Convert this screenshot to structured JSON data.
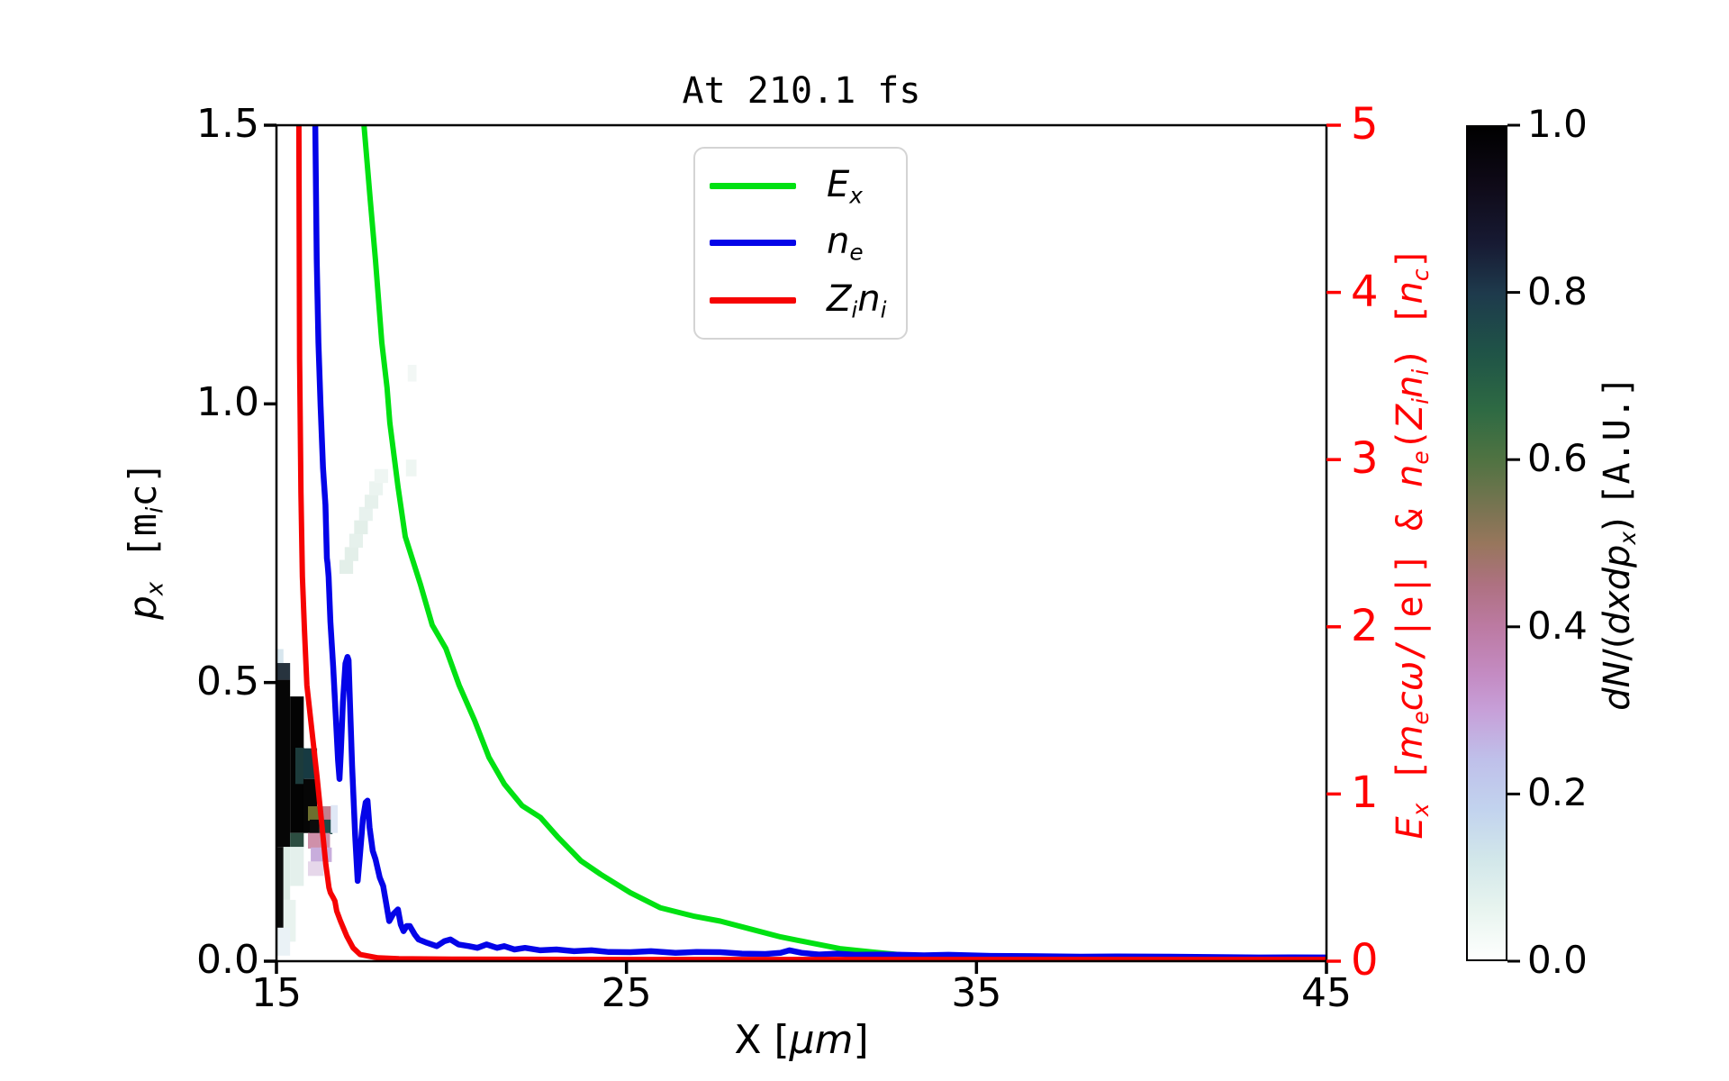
{
  "chart_data": {
    "type": "line+heatmap",
    "title": "At 210.1 fs",
    "axes": {
      "x": {
        "min": 15,
        "max": 45,
        "ticks": [
          "15",
          "25",
          "35",
          "45"
        ],
        "label_segments": [
          {
            "t": "X "
          },
          {
            "t": "["
          },
          {
            "t": "μm",
            "it": true
          },
          {
            "t": "]"
          }
        ]
      },
      "y_left": {
        "min": 0.0,
        "max": 1.5,
        "ticks": [
          "0.0",
          "0.5",
          "1.0",
          "1.5"
        ],
        "label_segments": [
          {
            "t": "p",
            "it": true
          },
          {
            "t": "x",
            "it": true,
            "sub": true
          },
          {
            "t": " ",
            "mono": true
          },
          {
            "t": "[m",
            "mono": true
          },
          {
            "t": "i",
            "it": true,
            "sub": true
          },
          {
            "t": "c]",
            "mono": true
          }
        ]
      },
      "y_right": {
        "min": 0,
        "max": 5,
        "ticks": [
          "0",
          "1",
          "2",
          "3",
          "4",
          "5"
        ],
        "color": "#ff0000",
        "label_segments": [
          {
            "t": "E",
            "it": true
          },
          {
            "t": "x",
            "it": true,
            "sub": true
          },
          {
            "t": " [",
            "mono": true
          },
          {
            "t": "m",
            "it": true
          },
          {
            "t": "e",
            "it": true,
            "sub": true
          },
          {
            "t": "c",
            "it": true
          },
          {
            "t": "ω",
            "it": true
          },
          {
            "t": "/|e|]",
            "mono": true
          },
          {
            "t": " & ",
            "mono": true
          },
          {
            "t": "n",
            "it": true
          },
          {
            "t": "e",
            "it": true,
            "sub": true
          },
          {
            "t": "(",
            "mono": true
          },
          {
            "t": "Z",
            "it": true
          },
          {
            "t": "i",
            "it": true,
            "sub": true
          },
          {
            "t": "n",
            "it": true
          },
          {
            "t": "i",
            "it": true,
            "sub": true
          },
          {
            "t": ")",
            "mono": true
          },
          {
            "t": " [",
            "mono": true
          },
          {
            "t": "n",
            "it": true
          },
          {
            "t": "c",
            "it": true,
            "sub": true
          },
          {
            "t": "]",
            "mono": true
          }
        ]
      }
    },
    "colorbar": {
      "min": 0.0,
      "max": 1.0,
      "ticks": [
        "0.0",
        "0.2",
        "0.4",
        "0.6",
        "0.8",
        "1.0"
      ],
      "label_segments": [
        {
          "t": "dN",
          "it": true
        },
        {
          "t": "/("
        },
        {
          "t": "dxdp",
          "it": true
        },
        {
          "t": "x",
          "it": true,
          "sub": true
        },
        {
          "t": ") "
        },
        {
          "t": "[A.U.]",
          "mono": true
        }
      ],
      "stops": [
        [
          0,
          "#000000"
        ],
        [
          7,
          "#0f0a18"
        ],
        [
          14,
          "#171a33"
        ],
        [
          20,
          "#1e3a4c"
        ],
        [
          27,
          "#1f5347"
        ],
        [
          34,
          "#2e6a43"
        ],
        [
          40,
          "#507342"
        ],
        [
          46,
          "#7a7452"
        ],
        [
          50,
          "#97765c"
        ],
        [
          55,
          "#ae7181"
        ],
        [
          60,
          "#bc7aa2"
        ],
        [
          66,
          "#c48cc4"
        ],
        [
          70,
          "#c79fd8"
        ],
        [
          76,
          "#bfc0ea"
        ],
        [
          82,
          "#c2d3ee"
        ],
        [
          88,
          "#d2e7ea"
        ],
        [
          94,
          "#e8f4ef"
        ],
        [
          100,
          "#fefffe"
        ]
      ]
    },
    "legend": {
      "entries": [
        {
          "name": "Ex",
          "color": "#00e112",
          "segments": [
            {
              "t": "E",
              "it": true
            },
            {
              "t": "x",
              "it": true,
              "sub": true
            }
          ]
        },
        {
          "name": "ne",
          "color": "#0404e8",
          "segments": [
            {
              "t": "n",
              "it": true
            },
            {
              "t": "e",
              "it": true,
              "sub": true
            }
          ]
        },
        {
          "name": "Zini",
          "color": "#f60303",
          "segments": [
            {
              "t": "Z",
              "it": true
            },
            {
              "t": "i",
              "it": true,
              "sub": true
            },
            {
              "t": "n",
              "it": true
            },
            {
              "t": "i",
              "it": true,
              "sub": true
            }
          ]
        }
      ]
    },
    "series": [
      {
        "name": "Ex",
        "color": "#00e112",
        "width": 6,
        "points": [
          [
            17.5,
            5.0
          ],
          [
            17.68,
            4.55
          ],
          [
            17.83,
            4.19
          ],
          [
            18.01,
            3.7
          ],
          [
            18.16,
            3.43
          ],
          [
            18.24,
            3.22
          ],
          [
            18.47,
            2.84
          ],
          [
            18.68,
            2.54
          ],
          [
            19.12,
            2.25
          ],
          [
            19.45,
            2.01
          ],
          [
            19.84,
            1.87
          ],
          [
            20.22,
            1.65
          ],
          [
            20.66,
            1.44
          ],
          [
            21.07,
            1.22
          ],
          [
            21.51,
            1.06
          ],
          [
            22.02,
            0.93
          ],
          [
            22.54,
            0.86
          ],
          [
            23.05,
            0.74
          ],
          [
            23.7,
            0.6
          ],
          [
            24.26,
            0.52
          ],
          [
            25.11,
            0.41
          ],
          [
            25.96,
            0.32
          ],
          [
            26.91,
            0.27
          ],
          [
            27.68,
            0.24
          ],
          [
            28.58,
            0.19
          ],
          [
            29.41,
            0.145
          ],
          [
            30.25,
            0.11
          ],
          [
            31.1,
            0.075
          ],
          [
            32.06,
            0.054
          ],
          [
            32.83,
            0.038
          ],
          [
            34.11,
            0.027
          ],
          [
            35.4,
            0.022
          ],
          [
            37.97,
            0.016
          ],
          [
            40.54,
            0.011
          ],
          [
            45.0,
            0.01
          ]
        ]
      },
      {
        "name": "ne",
        "color": "#0404e8",
        "width": 6.5,
        "points": [
          [
            16.11,
            5.0
          ],
          [
            16.15,
            4.2
          ],
          [
            16.2,
            3.7
          ],
          [
            16.26,
            3.32
          ],
          [
            16.33,
            2.95
          ],
          [
            16.4,
            2.73
          ],
          [
            16.44,
            2.41
          ],
          [
            16.46,
            2.38
          ],
          [
            16.49,
            2.3
          ],
          [
            16.54,
            2.03
          ],
          [
            16.62,
            1.76
          ],
          [
            16.7,
            1.44
          ],
          [
            16.76,
            1.2
          ],
          [
            16.8,
            1.09
          ],
          [
            16.84,
            1.25
          ],
          [
            16.9,
            1.55
          ],
          [
            16.97,
            1.78
          ],
          [
            17.03,
            1.82
          ],
          [
            17.06,
            1.8
          ],
          [
            17.1,
            1.55
          ],
          [
            17.16,
            1.17
          ],
          [
            17.25,
            0.75
          ],
          [
            17.32,
            0.48
          ],
          [
            17.38,
            0.62
          ],
          [
            17.47,
            0.85
          ],
          [
            17.55,
            0.95
          ],
          [
            17.6,
            0.96
          ],
          [
            17.66,
            0.8
          ],
          [
            17.75,
            0.66
          ],
          [
            17.83,
            0.61
          ],
          [
            17.95,
            0.5
          ],
          [
            18.05,
            0.45
          ],
          [
            18.13,
            0.35
          ],
          [
            18.22,
            0.24
          ],
          [
            18.33,
            0.28
          ],
          [
            18.47,
            0.31
          ],
          [
            18.55,
            0.22
          ],
          [
            18.63,
            0.18
          ],
          [
            18.72,
            0.21
          ],
          [
            18.81,
            0.21
          ],
          [
            18.95,
            0.16
          ],
          [
            19.06,
            0.13
          ],
          [
            19.3,
            0.11
          ],
          [
            19.58,
            0.09
          ],
          [
            19.8,
            0.12
          ],
          [
            19.97,
            0.13
          ],
          [
            20.2,
            0.1
          ],
          [
            20.5,
            0.09
          ],
          [
            20.74,
            0.08
          ],
          [
            21.0,
            0.1
          ],
          [
            21.3,
            0.08
          ],
          [
            21.51,
            0.09
          ],
          [
            21.8,
            0.07
          ],
          [
            22.1,
            0.08
          ],
          [
            22.54,
            0.065
          ],
          [
            23.0,
            0.07
          ],
          [
            23.5,
            0.06
          ],
          [
            24.0,
            0.065
          ],
          [
            24.5,
            0.055
          ],
          [
            25.11,
            0.054
          ],
          [
            25.7,
            0.06
          ],
          [
            26.4,
            0.05
          ],
          [
            27.0,
            0.055
          ],
          [
            27.68,
            0.054
          ],
          [
            28.3,
            0.045
          ],
          [
            28.97,
            0.043
          ],
          [
            29.4,
            0.05
          ],
          [
            29.66,
            0.065
          ],
          [
            30.0,
            0.05
          ],
          [
            30.5,
            0.04
          ],
          [
            31.0,
            0.045
          ],
          [
            31.54,
            0.038
          ],
          [
            32.2,
            0.04
          ],
          [
            32.83,
            0.038
          ],
          [
            33.5,
            0.035
          ],
          [
            34.2,
            0.038
          ],
          [
            35.4,
            0.032
          ],
          [
            36.5,
            0.03
          ],
          [
            37.97,
            0.027
          ],
          [
            39.0,
            0.028
          ],
          [
            40.54,
            0.027
          ],
          [
            42.0,
            0.024
          ],
          [
            43.11,
            0.022
          ],
          [
            44.0,
            0.023
          ],
          [
            45.0,
            0.022
          ]
        ]
      },
      {
        "name": "Zini",
        "color": "#f60303",
        "width": 6,
        "points": [
          [
            15.64,
            5.0
          ],
          [
            15.66,
            3.6
          ],
          [
            15.7,
            2.8
          ],
          [
            15.74,
            2.3
          ],
          [
            15.8,
            1.98
          ],
          [
            15.87,
            1.65
          ],
          [
            15.98,
            1.44
          ],
          [
            16.16,
            1.1
          ],
          [
            16.31,
            0.79
          ],
          [
            16.41,
            0.58
          ],
          [
            16.5,
            0.44
          ],
          [
            16.54,
            0.41
          ],
          [
            16.62,
            0.38
          ],
          [
            16.67,
            0.36
          ],
          [
            16.72,
            0.3
          ],
          [
            16.83,
            0.24
          ],
          [
            17.01,
            0.15
          ],
          [
            17.19,
            0.08
          ],
          [
            17.39,
            0.04
          ],
          [
            17.9,
            0.02
          ],
          [
            18.5,
            0.015
          ],
          [
            20.0,
            0.012
          ],
          [
            25.0,
            0.01
          ],
          [
            30.0,
            0.01
          ],
          [
            35.0,
            0.01
          ],
          [
            40.0,
            0.01
          ],
          [
            45.0,
            0.01
          ]
        ]
      }
    ],
    "heatmap_cells": [
      {
        "x": 15.0,
        "p": 0.205,
        "w": 0.39,
        "h": 0.3,
        "c": "#060606"
      },
      {
        "x": 15.0,
        "p": 0.505,
        "w": 0.39,
        "h": 0.03,
        "c": "#27333e"
      },
      {
        "x": 15.0,
        "p": 0.535,
        "w": 0.2,
        "h": 0.025,
        "c": "#d7e6ee"
      },
      {
        "x": 15.39,
        "p": 0.23,
        "w": 0.39,
        "h": 0.245,
        "c": "#030303"
      },
      {
        "x": 15.39,
        "p": 0.205,
        "w": 0.39,
        "h": 0.025,
        "c": "#2c4d41"
      },
      {
        "x": 15.54,
        "p": 0.318,
        "w": 0.25,
        "h": 0.065,
        "c": "#1c3b3b"
      },
      {
        "x": 15.77,
        "p": 0.327,
        "w": 0.39,
        "h": 0.055,
        "c": "#173a42"
      },
      {
        "x": 15.77,
        "p": 0.23,
        "w": 0.39,
        "h": 0.097,
        "c": "#060606"
      },
      {
        "x": 15.0,
        "p": 0.06,
        "w": 0.2,
        "h": 0.145,
        "c": "#0b0b0b"
      },
      {
        "x": 15.2,
        "p": 0.11,
        "w": 0.19,
        "h": 0.095,
        "c": "#dcebe4"
      },
      {
        "x": 15.39,
        "p": 0.135,
        "w": 0.39,
        "h": 0.07,
        "c": "#e4f0ec"
      },
      {
        "x": 15.2,
        "p": 0.035,
        "w": 0.35,
        "h": 0.075,
        "c": "#e9f3ef"
      },
      {
        "x": 15.0,
        "p": 0.01,
        "w": 0.39,
        "h": 0.05,
        "c": "#eaf2f6"
      },
      {
        "x": 15.9,
        "p": 0.252,
        "w": 0.33,
        "h": 0.026,
        "c": "#6d6f2f"
      },
      {
        "x": 16.23,
        "p": 0.252,
        "w": 0.37,
        "h": 0.026,
        "c": "#c2808f"
      },
      {
        "x": 15.95,
        "p": 0.228,
        "w": 0.28,
        "h": 0.026,
        "c": "#0c0c0c"
      },
      {
        "x": 16.23,
        "p": 0.228,
        "w": 0.37,
        "h": 0.026,
        "c": "#1d4b49"
      },
      {
        "x": 15.9,
        "p": 0.202,
        "w": 0.63,
        "h": 0.028,
        "c": "#cf90aa"
      },
      {
        "x": 15.98,
        "p": 0.178,
        "w": 0.6,
        "h": 0.026,
        "c": "#c8addc"
      },
      {
        "x": 15.9,
        "p": 0.153,
        "w": 0.45,
        "h": 0.026,
        "c": "#e6d7ea"
      },
      {
        "x": 16.55,
        "p": 0.23,
        "w": 0.2,
        "h": 0.05,
        "c": "#e0e8f6"
      },
      {
        "x": 16.8,
        "p": 0.695,
        "w": 0.39,
        "h": 0.025,
        "c": "#e3efe9"
      },
      {
        "x": 16.95,
        "p": 0.718,
        "w": 0.39,
        "h": 0.025,
        "c": "#e3efe9"
      },
      {
        "x": 17.08,
        "p": 0.742,
        "w": 0.39,
        "h": 0.025,
        "c": "#e6f1ec"
      },
      {
        "x": 17.22,
        "p": 0.766,
        "w": 0.39,
        "h": 0.025,
        "c": "#e3efe9"
      },
      {
        "x": 17.36,
        "p": 0.79,
        "w": 0.39,
        "h": 0.025,
        "c": "#e8f2ee"
      },
      {
        "x": 17.52,
        "p": 0.812,
        "w": 0.39,
        "h": 0.025,
        "c": "#e6f1ec"
      },
      {
        "x": 17.65,
        "p": 0.836,
        "w": 0.39,
        "h": 0.025,
        "c": "#ebf4f0"
      },
      {
        "x": 17.8,
        "p": 0.858,
        "w": 0.39,
        "h": 0.025,
        "c": "#eff6f3"
      },
      {
        "x": 18.7,
        "p": 0.87,
        "w": 0.3,
        "h": 0.03,
        "c": "#eef6f2"
      },
      {
        "x": 18.75,
        "p": 1.04,
        "w": 0.25,
        "h": 0.03,
        "c": "#f2f7f5"
      }
    ]
  }
}
